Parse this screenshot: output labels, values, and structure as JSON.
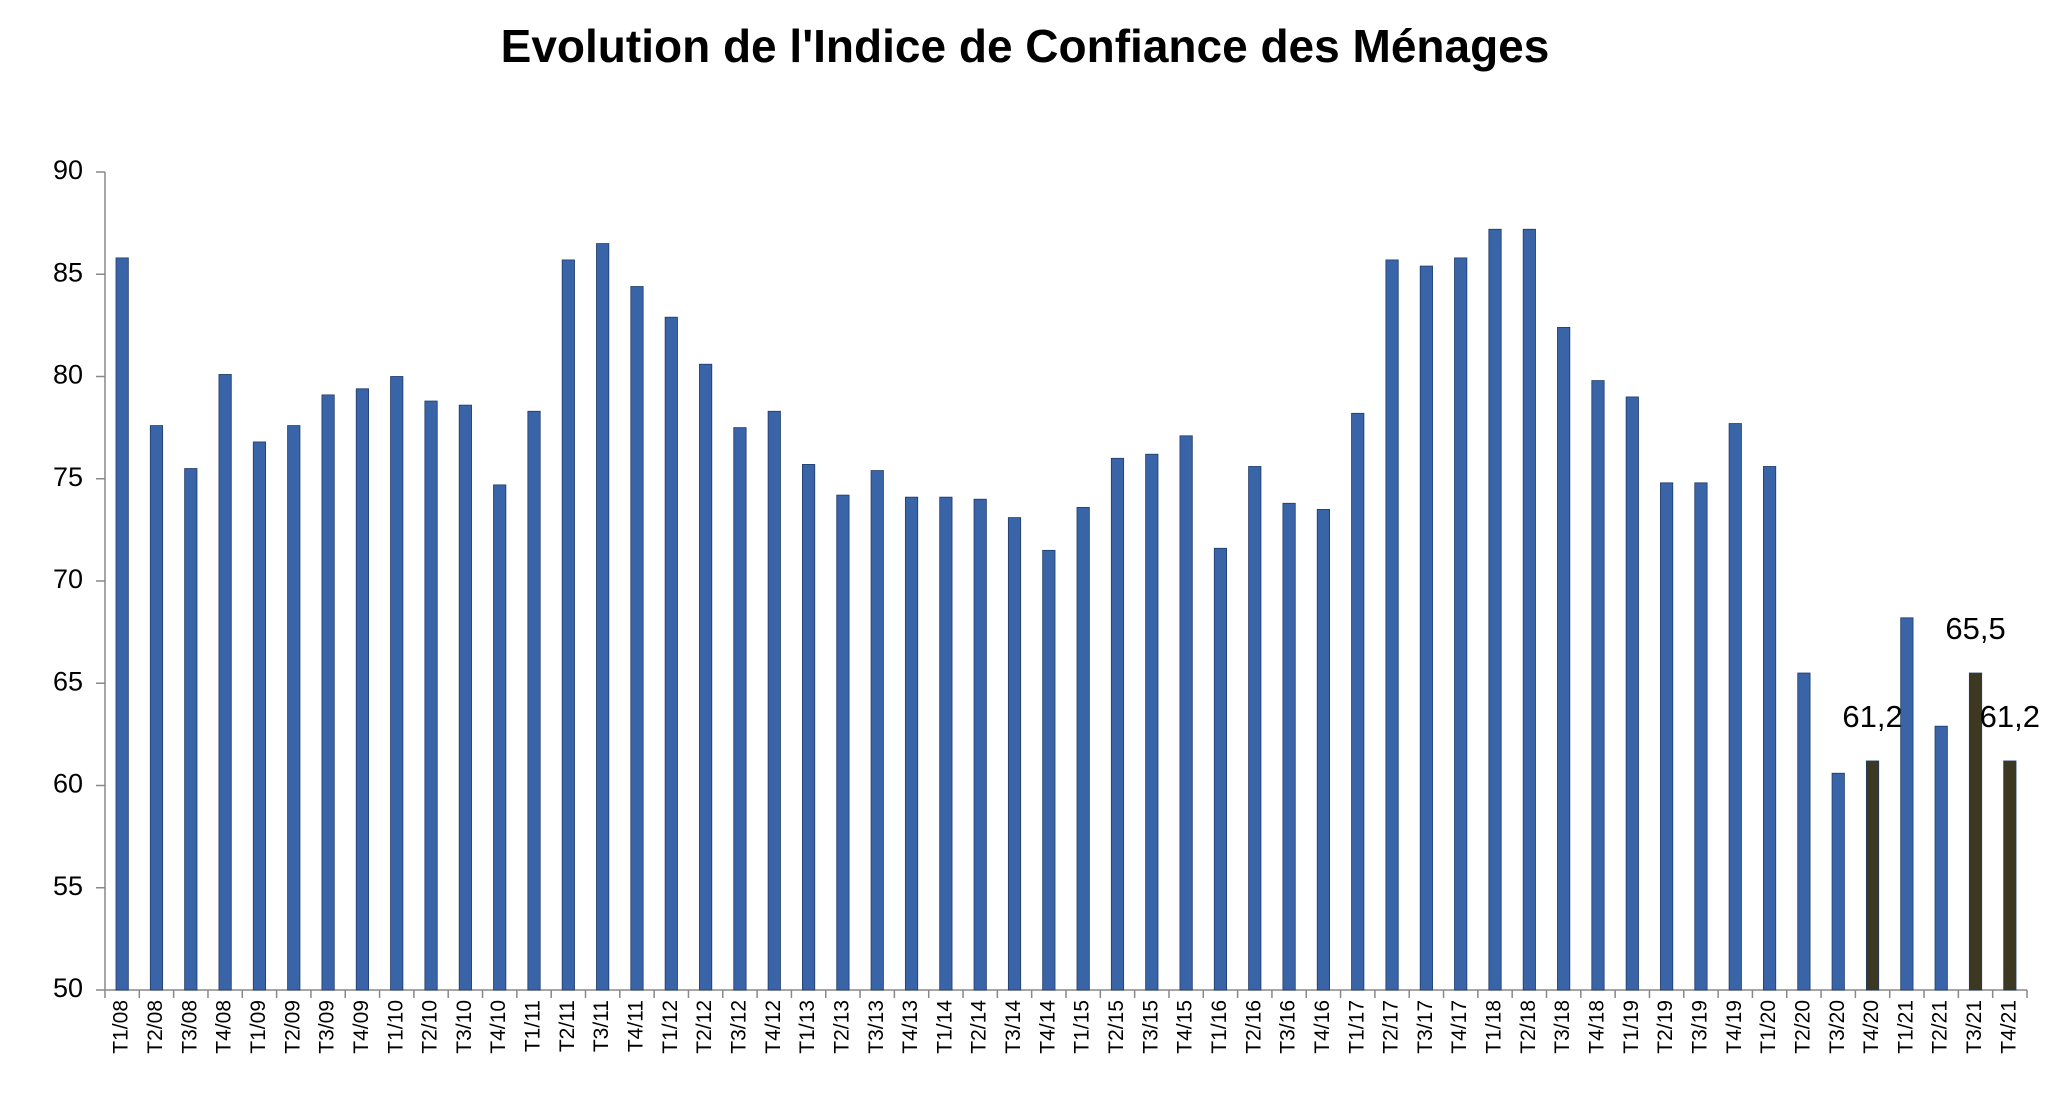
{
  "chart_data": {
    "type": "bar",
    "title": "Evolution de l'Indice de Confiance des Ménages",
    "categories": [
      "T1/08",
      "T2/08",
      "T3/08",
      "T4/08",
      "T1/09",
      "T2/09",
      "T3/09",
      "T4/09",
      "T1/10",
      "T2/10",
      "T3/10",
      "T4/10",
      "T1/11",
      "T2/11",
      "T3/11",
      "T4/11",
      "T1/12",
      "T2/12",
      "T3/12",
      "T4/12",
      "T1/13",
      "T2/13",
      "T3/13",
      "T4/13",
      "T1/14",
      "T2/14",
      "T3/14",
      "T4/14",
      "T1/15",
      "T2/15",
      "T3/15",
      "T4/15",
      "T1/16",
      "T2/16",
      "T3/16",
      "T4/16",
      "T1/17",
      "T2/17",
      "T3/17",
      "T4/17",
      "T1/18",
      "T2/18",
      "T3/18",
      "T4/18",
      "T1/19",
      "T2/19",
      "T3/19",
      "T4/19",
      "T1/20",
      "T2/20",
      "T3/20",
      "T4/20",
      "T1/21",
      "T2/21",
      "T3/21",
      "T4/21"
    ],
    "values": [
      85.8,
      77.6,
      75.5,
      80.1,
      76.8,
      77.6,
      79.1,
      79.4,
      80.0,
      78.8,
      78.6,
      74.7,
      78.3,
      85.7,
      86.5,
      84.4,
      82.9,
      80.6,
      77.5,
      78.3,
      75.7,
      74.2,
      75.4,
      74.1,
      74.1,
      74.0,
      73.1,
      71.5,
      73.6,
      76.0,
      76.2,
      77.1,
      71.6,
      75.6,
      73.8,
      73.5,
      78.2,
      85.7,
      85.4,
      85.8,
      87.2,
      87.2,
      82.4,
      79.8,
      79.0,
      74.8,
      74.8,
      77.7,
      75.6,
      65.5,
      60.6,
      61.2,
      68.2,
      62.9,
      65.5,
      61.2
    ],
    "value_labels": [
      null,
      null,
      null,
      null,
      null,
      null,
      null,
      null,
      null,
      null,
      null,
      null,
      null,
      null,
      null,
      null,
      null,
      null,
      null,
      null,
      null,
      null,
      null,
      null,
      null,
      null,
      null,
      null,
      null,
      null,
      null,
      null,
      null,
      null,
      null,
      null,
      null,
      null,
      null,
      null,
      null,
      null,
      null,
      null,
      null,
      null,
      null,
      null,
      null,
      null,
      null,
      "61,2",
      null,
      null,
      "65,5",
      "61,2"
    ],
    "colors": [
      "#3a64a8",
      "#3a64a8",
      "#3a64a8",
      "#3a64a8",
      "#3a64a8",
      "#3a64a8",
      "#3a64a8",
      "#3a64a8",
      "#3a64a8",
      "#3a64a8",
      "#3a64a8",
      "#3a64a8",
      "#3a64a8",
      "#3a64a8",
      "#3a64a8",
      "#3a64a8",
      "#3a64a8",
      "#3a64a8",
      "#3a64a8",
      "#3a64a8",
      "#3a64a8",
      "#3a64a8",
      "#3a64a8",
      "#3a64a8",
      "#3a64a8",
      "#3a64a8",
      "#3a64a8",
      "#3a64a8",
      "#3a64a8",
      "#3a64a8",
      "#3a64a8",
      "#3a64a8",
      "#3a64a8",
      "#3a64a8",
      "#3a64a8",
      "#3a64a8",
      "#3a64a8",
      "#3a64a8",
      "#3a64a8",
      "#3a64a8",
      "#3a64a8",
      "#3a64a8",
      "#3a64a8",
      "#3a64a8",
      "#3a64a8",
      "#3a64a8",
      "#3a64a8",
      "#3a64a8",
      "#3a64a8",
      "#3a64a8",
      "#3a64a8",
      "#3d3822",
      "#3a64a8",
      "#3a64a8",
      "#3d3822",
      "#3d3822"
    ],
    "ylim": [
      50,
      90
    ],
    "yticks": [
      50,
      55,
      60,
      65,
      70,
      75,
      80,
      85,
      90
    ],
    "grid": false
  }
}
